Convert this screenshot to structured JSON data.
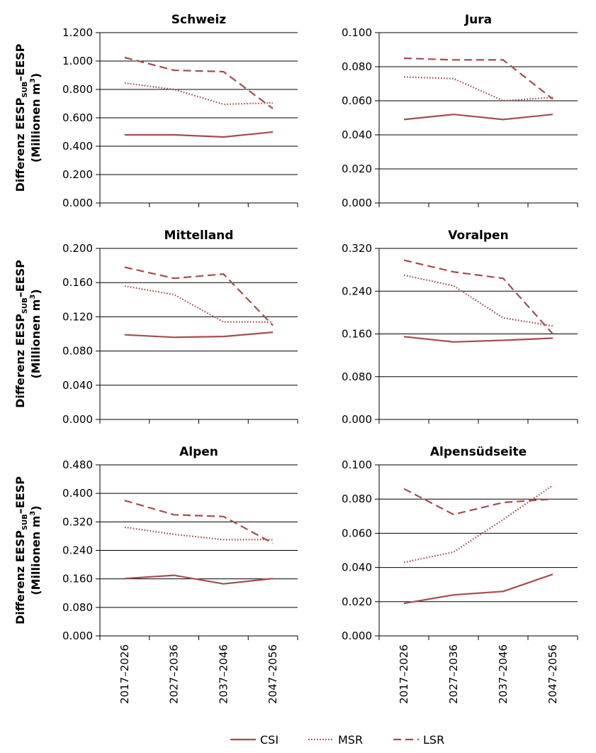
{
  "y_axis_label": {
    "line1_prefix": "Differenz EESP",
    "line1_sub": "SUB",
    "line1_suffix": "–EESP",
    "line2_prefix": "(Millionen m",
    "line2_sup": "3",
    "line2_suffix": ")"
  },
  "legend": [
    {
      "name": "CSI",
      "style": "solid"
    },
    {
      "name": "MSR",
      "style": "dotted"
    },
    {
      "name": "LSR",
      "style": "dashed"
    }
  ],
  "colors": {
    "series": "#a64d4d",
    "grid": "#000000"
  },
  "chart_data": [
    {
      "type": "line",
      "title": "Schweiz",
      "categories": [
        "2017–2026",
        "2027–2036",
        "2037–2046",
        "2047–2056"
      ],
      "ylim": [
        0,
        1.2
      ],
      "yticks": [
        "0.000",
        "0.200",
        "0.400",
        "0.600",
        "0.800",
        "1.000",
        "1.200"
      ],
      "grid": true,
      "series": [
        {
          "name": "CSI",
          "values": [
            0.48,
            0.48,
            0.465,
            0.5
          ]
        },
        {
          "name": "MSR",
          "values": [
            0.845,
            0.8,
            0.695,
            0.705
          ]
        },
        {
          "name": "LSR",
          "values": [
            1.025,
            0.935,
            0.925,
            0.665
          ]
        }
      ]
    },
    {
      "type": "line",
      "title": "Jura",
      "categories": [
        "2017–2026",
        "2027–2036",
        "2037–2046",
        "2047–2056"
      ],
      "ylim": [
        0,
        0.1
      ],
      "yticks": [
        "0.000",
        "0.020",
        "0.040",
        "0.060",
        "0.080",
        "0.100"
      ],
      "grid": true,
      "series": [
        {
          "name": "CSI",
          "values": [
            0.049,
            0.052,
            0.049,
            0.052
          ]
        },
        {
          "name": "MSR",
          "values": [
            0.074,
            0.073,
            0.06,
            0.062
          ]
        },
        {
          "name": "LSR",
          "values": [
            0.085,
            0.084,
            0.084,
            0.061
          ]
        }
      ]
    },
    {
      "type": "line",
      "title": "Mittelland",
      "categories": [
        "2017–2026",
        "2027–2036",
        "2037–2046",
        "2047–2056"
      ],
      "ylim": [
        0,
        0.2
      ],
      "yticks": [
        "0.000",
        "0.040",
        "0.080",
        "0.120",
        "0.160",
        "0.200"
      ],
      "grid": true,
      "series": [
        {
          "name": "CSI",
          "values": [
            0.099,
            0.096,
            0.097,
            0.102
          ]
        },
        {
          "name": "MSR",
          "values": [
            0.156,
            0.146,
            0.114,
            0.114
          ]
        },
        {
          "name": "LSR",
          "values": [
            0.178,
            0.165,
            0.17,
            0.11
          ]
        }
      ]
    },
    {
      "type": "line",
      "title": "Voralpen",
      "categories": [
        "2017–2026",
        "2027–2036",
        "2037–2046",
        "2047–2056"
      ],
      "ylim": [
        0,
        0.32
      ],
      "yticks": [
        "0.000",
        "0.080",
        "0.160",
        "0.240",
        "0.320"
      ],
      "grid": true,
      "series": [
        {
          "name": "CSI",
          "values": [
            0.155,
            0.145,
            0.148,
            0.152
          ]
        },
        {
          "name": "MSR",
          "values": [
            0.27,
            0.25,
            0.19,
            0.175
          ]
        },
        {
          "name": "LSR",
          "values": [
            0.298,
            0.276,
            0.264,
            0.16
          ]
        }
      ]
    },
    {
      "type": "line",
      "title": "Alpen",
      "categories": [
        "2017–2026",
        "2027–2036",
        "2037–2046",
        "2047–2056"
      ],
      "ylim": [
        0,
        0.48
      ],
      "yticks": [
        "0.000",
        "0.080",
        "0.160",
        "0.240",
        "0.320",
        "0.400",
        "0.480"
      ],
      "grid": true,
      "series": [
        {
          "name": "CSI",
          "values": [
            0.161,
            0.17,
            0.146,
            0.161
          ]
        },
        {
          "name": "MSR",
          "values": [
            0.305,
            0.285,
            0.27,
            0.27
          ]
        },
        {
          "name": "LSR",
          "values": [
            0.38,
            0.34,
            0.335,
            0.26
          ]
        }
      ]
    },
    {
      "type": "line",
      "title": "Alpensüdseite",
      "categories": [
        "2017–2026",
        "2027–2036",
        "2037–2046",
        "2047–2056"
      ],
      "ylim": [
        0,
        0.1
      ],
      "yticks": [
        "0.000",
        "0.020",
        "0.040",
        "0.060",
        "0.080",
        "0.100"
      ],
      "grid": true,
      "series": [
        {
          "name": "CSI",
          "values": [
            0.019,
            0.024,
            0.026,
            0.036
          ]
        },
        {
          "name": "MSR",
          "values": [
            0.043,
            0.049,
            0.068,
            0.088
          ]
        },
        {
          "name": "LSR",
          "values": [
            0.086,
            0.071,
            0.078,
            0.08
          ]
        }
      ]
    }
  ]
}
